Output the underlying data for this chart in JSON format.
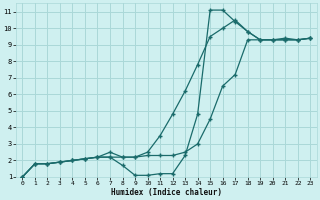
{
  "xlabel": "Humidex (Indice chaleur)",
  "xlim": [
    -0.5,
    23.5
  ],
  "ylim": [
    1,
    11.5
  ],
  "xticks": [
    0,
    1,
    2,
    3,
    4,
    5,
    6,
    7,
    8,
    9,
    10,
    11,
    12,
    13,
    14,
    15,
    16,
    17,
    18,
    19,
    20,
    21,
    22,
    23
  ],
  "yticks": [
    1,
    2,
    3,
    4,
    5,
    6,
    7,
    8,
    9,
    10,
    11
  ],
  "bg_color": "#cff0f0",
  "grid_color": "#aad8d8",
  "line_color": "#1a6b6b",
  "line1_x": [
    0,
    1,
    2,
    3,
    4,
    5,
    6,
    7,
    8,
    9,
    10,
    11,
    12,
    13,
    14,
    15,
    16,
    17,
    18,
    19,
    20,
    21,
    22,
    23
  ],
  "line1_y": [
    1,
    1.8,
    1.8,
    1.9,
    2.0,
    2.1,
    2.2,
    2.5,
    2.2,
    2.2,
    2.3,
    2.3,
    2.3,
    2.5,
    3.0,
    4.5,
    6.5,
    7.2,
    9.3,
    9.3,
    9.3,
    9.4,
    9.3,
    9.4
  ],
  "line2_x": [
    0,
    1,
    2,
    3,
    4,
    5,
    6,
    7,
    8,
    9,
    10,
    11,
    12,
    13,
    14,
    15,
    16,
    17,
    18,
    19,
    20,
    21,
    22,
    23
  ],
  "line2_y": [
    1,
    1.8,
    1.8,
    1.9,
    2.0,
    2.1,
    2.2,
    2.2,
    1.7,
    1.1,
    1.1,
    1.2,
    1.2,
    2.3,
    4.8,
    11.1,
    11.1,
    10.4,
    9.8,
    9.3,
    9.3,
    9.3,
    9.3,
    9.4
  ],
  "line3_x": [
    0,
    1,
    2,
    3,
    4,
    5,
    6,
    7,
    8,
    9,
    10,
    11,
    12,
    13,
    14,
    15,
    16,
    17,
    18,
    19,
    20,
    21,
    22,
    23
  ],
  "line3_y": [
    1,
    1.8,
    1.8,
    1.9,
    2.0,
    2.1,
    2.2,
    2.2,
    2.2,
    2.2,
    2.5,
    3.5,
    4.8,
    6.2,
    7.8,
    9.5,
    10.0,
    10.5,
    9.8,
    9.3,
    9.3,
    9.3,
    9.3,
    9.4
  ]
}
